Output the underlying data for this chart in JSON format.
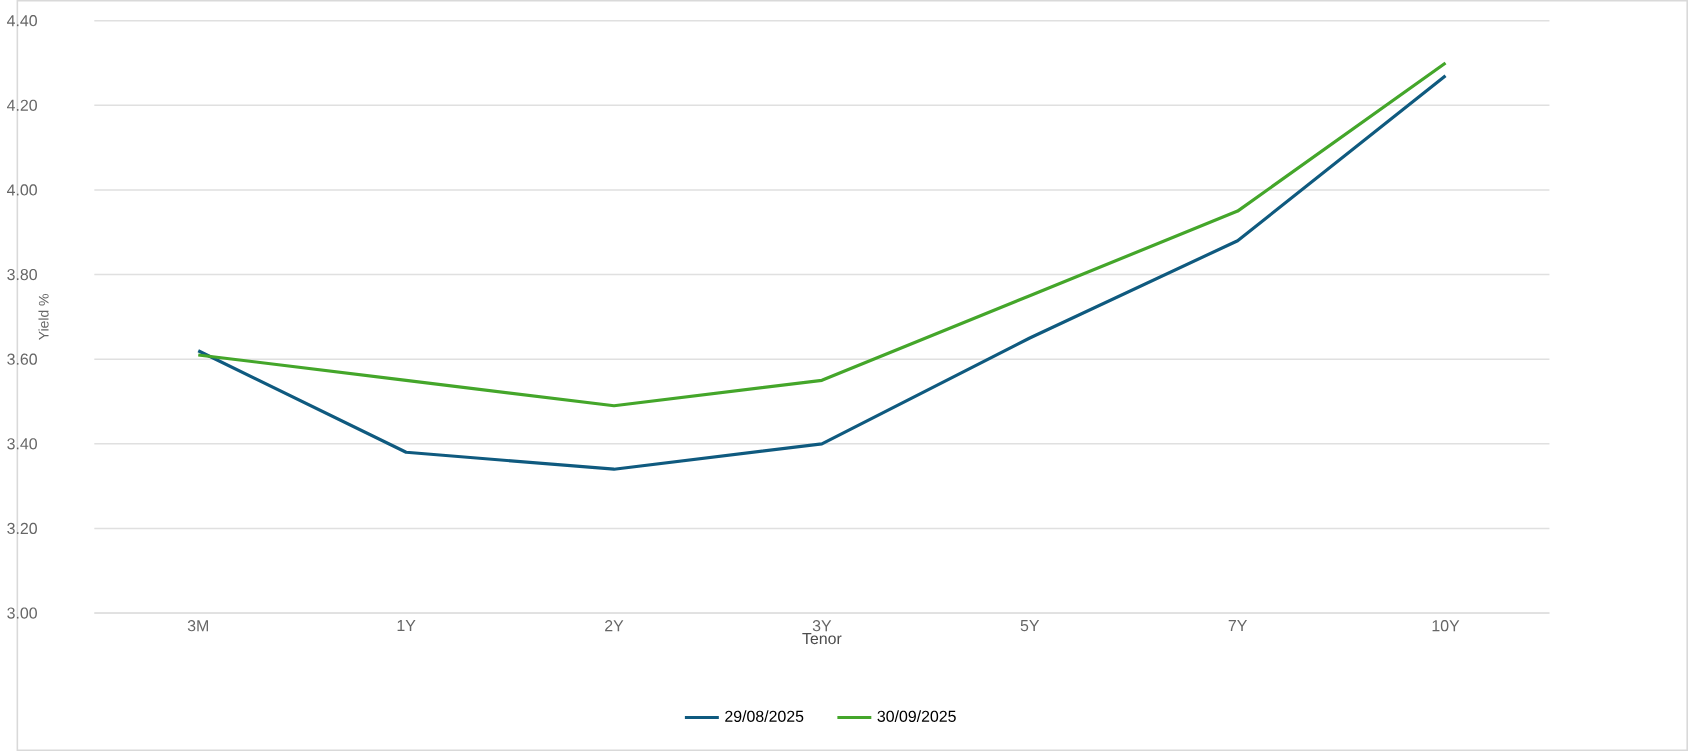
{
  "chart_data": {
    "type": "line",
    "xlabel": "Tenor",
    "ylabel": "Yield %",
    "categories": [
      "3M",
      "1Y",
      "2Y",
      "3Y",
      "5Y",
      "7Y",
      "10Y"
    ],
    "series": [
      {
        "name": "29/08/2025",
        "color": "#0f5a7f",
        "values": [
          3.62,
          3.38,
          3.34,
          3.4,
          3.65,
          3.88,
          4.27
        ]
      },
      {
        "name": "30/09/2025",
        "color": "#44a62a",
        "values": [
          3.61,
          3.55,
          3.49,
          3.55,
          3.75,
          3.95,
          4.3
        ]
      }
    ],
    "ylim": [
      3.0,
      4.4
    ],
    "yticks": [
      {
        "value": 3.0,
        "label": "3.00"
      },
      {
        "value": 3.2,
        "label": "3.20"
      },
      {
        "value": 3.4,
        "label": "3.40"
      },
      {
        "value": 3.6,
        "label": "3.60"
      },
      {
        "value": 3.8,
        "label": "3.80"
      },
      {
        "value": 4.0,
        "label": "4.00"
      },
      {
        "value": 4.2,
        "label": "4.20"
      },
      {
        "value": 4.4,
        "label": "4.40"
      }
    ],
    "grid": "y",
    "legend": "bottom",
    "marker": "none",
    "line_style": "solid"
  }
}
